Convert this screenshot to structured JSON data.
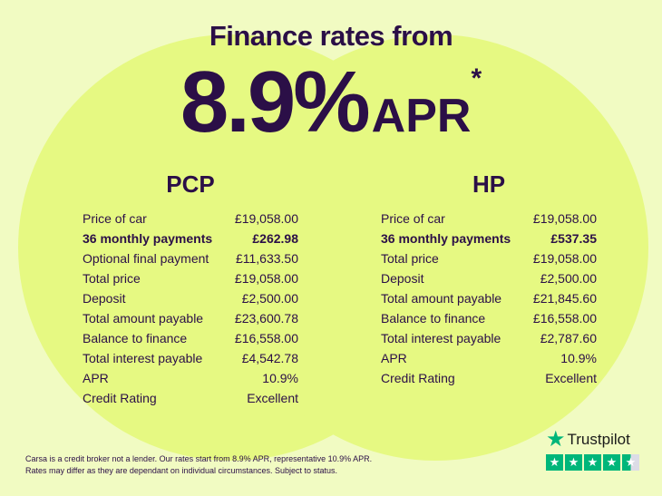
{
  "header": {
    "title": "Finance rates from",
    "rate": "8.9%",
    "apr": "APR",
    "asterisk": "*"
  },
  "pcp": {
    "heading": "PCP",
    "rows": [
      {
        "label": "Price of car",
        "value": "£19,058.00"
      },
      {
        "label": "36 monthly payments",
        "value": "£262.98",
        "bold": true
      },
      {
        "label": "Optional final payment",
        "value": "£11,633.50"
      },
      {
        "label": "Total price",
        "value": "£19,058.00"
      },
      {
        "label": "Deposit",
        "value": "£2,500.00"
      },
      {
        "label": "Total amount payable",
        "value": "£23,600.78"
      },
      {
        "label": "Balance to finance",
        "value": "£16,558.00"
      },
      {
        "label": "Total interest payable",
        "value": "£4,542.78"
      },
      {
        "label": "APR",
        "value": "10.9%"
      },
      {
        "label": "Credit Rating",
        "value": "Excellent"
      }
    ]
  },
  "hp": {
    "heading": "HP",
    "rows": [
      {
        "label": "Price of car",
        "value": "£19,058.00"
      },
      {
        "label": "36 monthly payments",
        "value": "£537.35",
        "bold": true
      },
      {
        "label": "Total price",
        "value": "£19,058.00"
      },
      {
        "label": "Deposit",
        "value": "£2,500.00"
      },
      {
        "label": "Total amount payable",
        "value": "£21,845.60"
      },
      {
        "label": "Balance to finance",
        "value": "£16,558.00"
      },
      {
        "label": "Total interest payable",
        "value": "£2,787.60"
      },
      {
        "label": "APR",
        "value": "10.9%"
      },
      {
        "label": "Credit Rating",
        "value": "Excellent"
      }
    ]
  },
  "footer": {
    "line1": "Carsa is a credit broker not a lender. Our rates start from 8.9% APR, representative 10.9% APR.",
    "line2": "Rates may differ as they are dependant on individual circumstances. Subject to status."
  },
  "trustpilot": {
    "label": "Trustpilot",
    "rating_stars": 4.5,
    "max_stars": 5,
    "icon": "star-icon"
  },
  "colors": {
    "background": "#f1fbc2",
    "circle": "#e6f982",
    "text": "#2b0f47",
    "trustpilot_green": "#00b67a"
  }
}
